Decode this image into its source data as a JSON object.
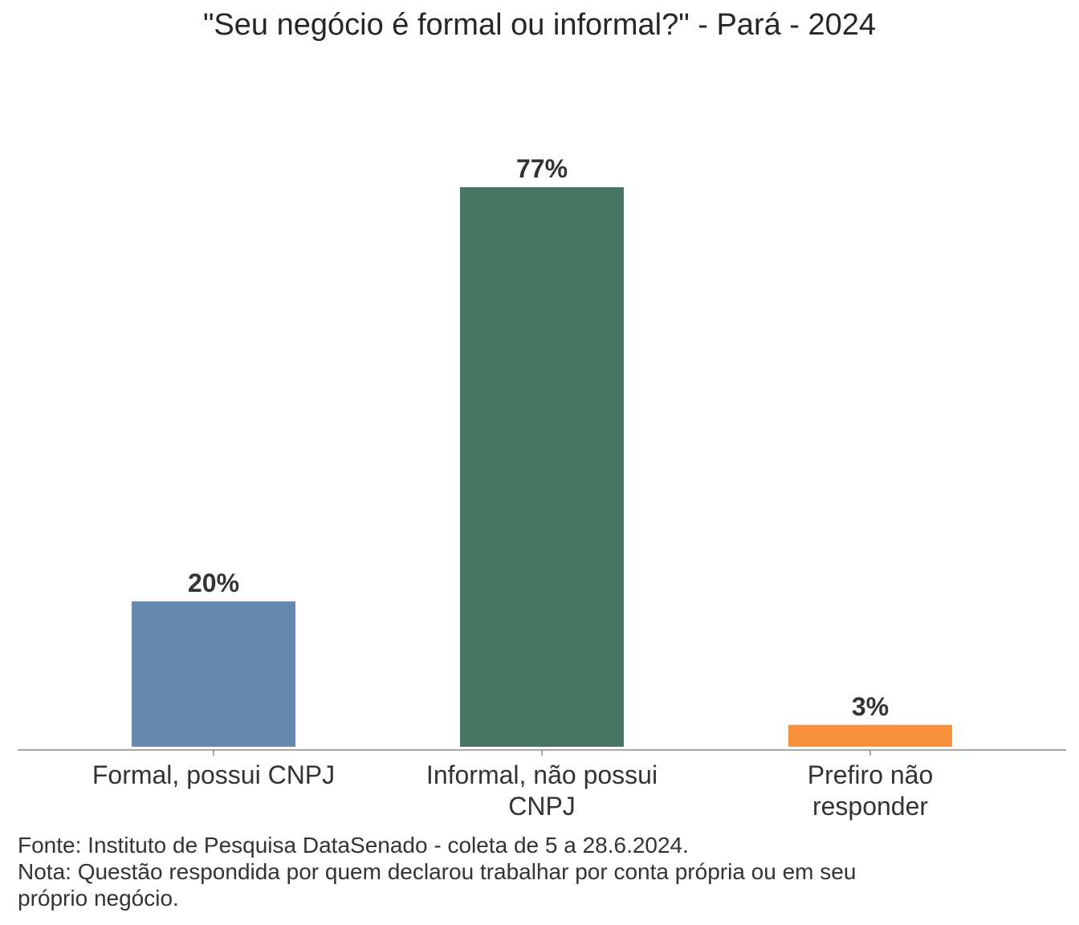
{
  "chart_data": {
    "type": "bar",
    "title": "\"Seu negócio é formal ou informal?\" - Pará - 2024",
    "xlabel": "",
    "ylabel": "",
    "ylim": [
      0,
      100
    ],
    "grid": false,
    "categories": [
      [
        "Formal, possui CNPJ"
      ],
      [
        "Informal, não possui",
        "CNPJ"
      ],
      [
        "Prefiro não",
        "responder"
      ]
    ],
    "values": [
      20,
      77,
      3
    ],
    "value_labels": [
      "20%",
      "77%",
      "3%"
    ],
    "colors": [
      "#6688b0",
      "#467564",
      "#f9913d"
    ]
  },
  "footnotes": {
    "source": "Fonte: Instituto de Pesquisa DataSenado - coleta de 5 a 28.6.2024.",
    "note_line1": "Nota: Questão respondida por quem declarou trabalhar por conta própria ou em seu",
    "note_line2": "próprio negócio."
  }
}
